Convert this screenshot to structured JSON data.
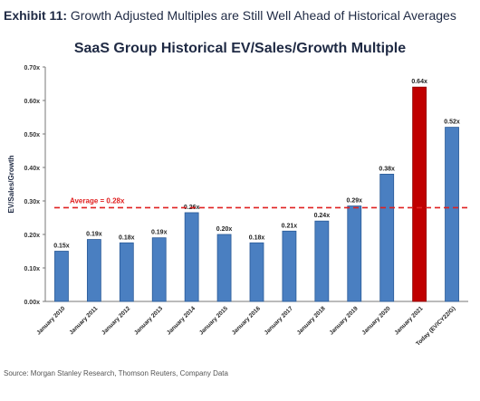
{
  "header": {
    "exhibit_label": "Exhibit 11:",
    "exhibit_text": "Growth Adjusted Multiples are Still Well Ahead of Historical Averages"
  },
  "chart_data": {
    "type": "bar",
    "title": "SaaS Group Historical EV/Sales/Growth Multiple",
    "xlabel": "",
    "ylabel": "EV/Sales/Growth",
    "ylim": [
      0,
      0.7
    ],
    "yticks": [
      0,
      0.1,
      0.2,
      0.3,
      0.4,
      0.5,
      0.6,
      0.7
    ],
    "ytick_labels": [
      "0.00x",
      "0.10x",
      "0.20x",
      "0.30x",
      "0.40x",
      "0.50x",
      "0.60x",
      "0.70x"
    ],
    "categories": [
      "January 2010",
      "January 2011",
      "January 2012",
      "January 2013",
      "January 2014",
      "January 2015",
      "January 2016",
      "January 2017",
      "January 2018",
      "January 2019",
      "January 2020",
      "January 2021",
      "Today (EV/CY22/G)"
    ],
    "values": [
      0.15,
      0.185,
      0.175,
      0.19,
      0.265,
      0.2,
      0.175,
      0.21,
      0.24,
      0.285,
      0.38,
      0.64,
      0.52
    ],
    "data_labels": [
      "0.15x",
      "0.19x",
      "0.18x",
      "0.19x",
      "0.26x",
      "0.20x",
      "0.18x",
      "0.21x",
      "0.24x",
      "0.29x",
      "0.38x",
      "0.64x",
      "0.52x"
    ],
    "highlight_index": 11,
    "colors": {
      "bar": "#4a7fc1",
      "bar_edge": "#2a5a97",
      "highlight": "#c00000",
      "highlight_edge": "#8f0000",
      "average": "#e02020"
    },
    "average": {
      "value": 0.28,
      "label": "Average = 0.28x"
    },
    "grid": false
  },
  "footer": {
    "source": "Source: Morgan Stanley Research, Thomson Reuters, Company Data"
  }
}
